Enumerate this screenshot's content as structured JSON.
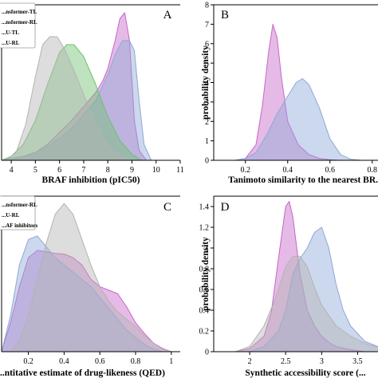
{
  "chart_data": [
    {
      "panel": "A",
      "type": "area",
      "xlabel": "BRAF inhibition (pIC50)",
      "ylabel": "",
      "xlim": [
        3.6,
        11
      ],
      "ylim": [
        0,
        0.78
      ],
      "xticks": [
        4,
        5,
        6,
        7,
        8,
        9,
        10,
        11
      ],
      "legend": {
        "placement": "top-left",
        "entries": [
          "...nsformer-TL",
          "...nsformer-RL",
          "...U-TL",
          "...U-RL"
        ]
      },
      "series": [
        {
          "name": "...nsformer-TL",
          "color": "#c766c7",
          "x": [
            3.6,
            4.0,
            4.5,
            5.0,
            5.5,
            6.0,
            6.5,
            7.0,
            7.5,
            7.8,
            8.0,
            8.3,
            8.5,
            8.7,
            8.9,
            9.1,
            9.3,
            9.6
          ],
          "y": [
            0,
            0.01,
            0.02,
            0.04,
            0.08,
            0.14,
            0.2,
            0.27,
            0.34,
            0.4,
            0.46,
            0.6,
            0.71,
            0.74,
            0.6,
            0.2,
            0.05,
            0
          ]
        },
        {
          "name": "...nsformer-RL",
          "color": "#8ea8d8",
          "x": [
            3.6,
            4.0,
            4.5,
            5.0,
            5.5,
            6.0,
            6.5,
            7.0,
            7.5,
            8.0,
            8.3,
            8.6,
            8.9,
            9.1,
            9.3,
            9.5,
            9.8
          ],
          "y": [
            0,
            0.01,
            0.02,
            0.04,
            0.07,
            0.11,
            0.16,
            0.23,
            0.3,
            0.43,
            0.53,
            0.6,
            0.6,
            0.55,
            0.3,
            0.08,
            0
          ]
        },
        {
          "name": "...U-TL",
          "color": "#6fc26f",
          "x": [
            3.6,
            4.0,
            4.5,
            5.0,
            5.5,
            6.0,
            6.3,
            6.6,
            7.0,
            7.5,
            8.0,
            8.5,
            9.0,
            9.4
          ],
          "y": [
            0,
            0.02,
            0.08,
            0.2,
            0.38,
            0.54,
            0.58,
            0.58,
            0.52,
            0.38,
            0.22,
            0.1,
            0.03,
            0
          ]
        },
        {
          "name": "...U-RL",
          "color": "#b3b3b3",
          "x": [
            3.8,
            4.2,
            4.6,
            5.0,
            5.3,
            5.6,
            5.9,
            6.2,
            6.6,
            7.0,
            7.5,
            8.0,
            8.5,
            9.0
          ],
          "y": [
            0,
            0.04,
            0.18,
            0.42,
            0.58,
            0.62,
            0.62,
            0.56,
            0.45,
            0.33,
            0.18,
            0.07,
            0.02,
            0
          ]
        }
      ]
    },
    {
      "panel": "B",
      "type": "area",
      "xlabel": "Tanimoto similarity to the nearest BR...",
      "ylabel": "probability density",
      "xlim": [
        0.05,
        0.85
      ],
      "ylim": [
        0,
        8
      ],
      "xticks": [
        0.2,
        0.4,
        0.6,
        0.8
      ],
      "yticks": [
        0,
        1,
        2,
        3,
        4,
        5,
        6,
        7,
        8
      ],
      "series": [
        {
          "color": "#c766c7",
          "x": [
            0.15,
            0.2,
            0.25,
            0.28,
            0.31,
            0.33,
            0.35,
            0.37,
            0.4,
            0.45,
            0.5,
            0.55,
            0.6,
            0.65
          ],
          "y": [
            0,
            0.1,
            0.8,
            2.8,
            5.6,
            7.0,
            6.3,
            4.3,
            2.0,
            0.8,
            0.3,
            0.1,
            0.03,
            0
          ]
        },
        {
          "color": "#8ea8d8",
          "x": [
            0.15,
            0.2,
            0.25,
            0.3,
            0.35,
            0.4,
            0.44,
            0.47,
            0.5,
            0.55,
            0.6,
            0.65,
            0.7,
            0.75
          ],
          "y": [
            0,
            0.1,
            0.4,
            1.3,
            2.4,
            3.3,
            4.0,
            4.2,
            3.9,
            2.7,
            1.1,
            0.3,
            0.05,
            0
          ]
        }
      ]
    },
    {
      "panel": "C",
      "type": "area",
      "xlabel": "...ntitative estimate of drug-likeness (QED)",
      "ylabel": "",
      "xlim": [
        0.05,
        1.05
      ],
      "ylim": [
        0,
        2.15
      ],
      "xticks": [
        0.2,
        0.4,
        0.6,
        0.8,
        1.0
      ],
      "legend": {
        "placement": "top-left",
        "entries": [
          "...nsformer-RL",
          "...U-RL",
          "...AF inhibitors"
        ]
      },
      "series": [
        {
          "name": "...nsformer-RL",
          "color": "#c766c7",
          "x": [
            0.05,
            0.1,
            0.15,
            0.2,
            0.25,
            0.3,
            0.35,
            0.4,
            0.45,
            0.5,
            0.55,
            0.6,
            0.65,
            0.7,
            0.75,
            0.8,
            0.85,
            0.9,
            0.95,
            1.0
          ],
          "y": [
            0,
            0.4,
            0.9,
            1.3,
            1.4,
            1.38,
            1.36,
            1.35,
            1.3,
            1.2,
            1.0,
            0.9,
            0.85,
            0.8,
            0.62,
            0.4,
            0.25,
            0.12,
            0.04,
            0
          ]
        },
        {
          "name": "...U-RL",
          "color": "#8ea8d8",
          "x": [
            0.05,
            0.1,
            0.15,
            0.2,
            0.25,
            0.3,
            0.35,
            0.4,
            0.45,
            0.5,
            0.55,
            0.6,
            0.65,
            0.7,
            0.75,
            0.8,
            0.85,
            0.9,
            0.95
          ],
          "y": [
            0,
            0.5,
            1.2,
            1.55,
            1.6,
            1.45,
            1.3,
            1.2,
            1.1,
            1.0,
            0.9,
            0.75,
            0.6,
            0.45,
            0.3,
            0.2,
            0.1,
            0.04,
            0
          ]
        },
        {
          "name": "...AF inhibitors",
          "color": "#b3b3b3",
          "x": [
            0.1,
            0.15,
            0.2,
            0.25,
            0.3,
            0.35,
            0.4,
            0.45,
            0.5,
            0.55,
            0.6,
            0.65,
            0.7,
            0.75,
            0.8,
            0.85,
            0.9,
            0.95,
            1.0
          ],
          "y": [
            0,
            0.15,
            0.5,
            1.0,
            1.5,
            1.9,
            2.05,
            1.9,
            1.55,
            1.2,
            0.9,
            0.7,
            0.55,
            0.45,
            0.35,
            0.22,
            0.12,
            0.05,
            0
          ]
        }
      ]
    },
    {
      "panel": "D",
      "type": "area",
      "xlabel": "Synthetic accessibility score (...",
      "ylabel": "probability density",
      "xlim": [
        1.5,
        3.85
      ],
      "ylim": [
        0,
        1.5
      ],
      "xticks": [
        2.0,
        2.5,
        3.0,
        3.5
      ],
      "yticks": [
        0,
        0.2,
        0.4,
        0.6,
        0.8,
        1.0,
        1.2,
        1.4
      ],
      "series": [
        {
          "color": "#c766c7",
          "x": [
            1.8,
            2.0,
            2.2,
            2.3,
            2.4,
            2.5,
            2.55,
            2.6,
            2.7,
            2.8,
            2.9,
            3.0,
            3.1,
            3.2,
            3.4,
            3.6
          ],
          "y": [
            0,
            0.03,
            0.15,
            0.38,
            0.9,
            1.4,
            1.45,
            1.3,
            0.75,
            0.4,
            0.25,
            0.15,
            0.09,
            0.05,
            0.02,
            0
          ]
        },
        {
          "color": "#8ea8d8",
          "x": [
            2.0,
            2.2,
            2.4,
            2.5,
            2.6,
            2.7,
            2.8,
            2.9,
            3.0,
            3.1,
            3.2,
            3.3,
            3.4,
            3.6,
            3.85
          ],
          "y": [
            0,
            0.05,
            0.2,
            0.4,
            0.75,
            0.9,
            1.0,
            1.15,
            1.2,
            1.0,
            0.65,
            0.4,
            0.25,
            0.1,
            0.03
          ]
        },
        {
          "color": "#b3b3b3",
          "x": [
            1.8,
            2.0,
            2.2,
            2.35,
            2.5,
            2.6,
            2.7,
            2.8,
            2.9,
            3.0,
            3.2,
            3.4,
            3.6,
            3.85
          ],
          "y": [
            0,
            0.05,
            0.25,
            0.5,
            0.82,
            0.92,
            0.92,
            0.82,
            0.62,
            0.45,
            0.25,
            0.15,
            0.08,
            0.03
          ]
        }
      ]
    }
  ],
  "panel_letters": {
    "a": "A",
    "b": "B",
    "c": "C",
    "d": "D"
  }
}
